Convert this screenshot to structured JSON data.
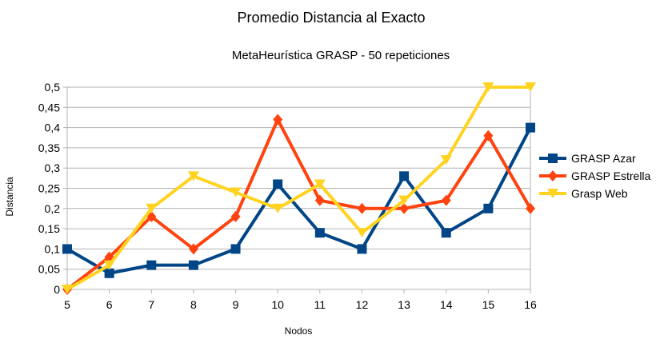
{
  "chart_data": {
    "type": "line",
    "title": "Promedio Distancia al Exacto",
    "subtitle": "MetaHeurística GRASP - 50 repeticiones",
    "xlabel": "Nodos",
    "ylabel": "Distancia",
    "x": [
      5,
      6,
      7,
      8,
      9,
      10,
      11,
      12,
      13,
      14,
      15,
      16
    ],
    "x_tick_labels": [
      "5",
      "6",
      "7",
      "8",
      "9",
      "10",
      "11",
      "12",
      "13",
      "14",
      "15",
      "16"
    ],
    "ylim": [
      0,
      0.5
    ],
    "y_ticks": [
      0,
      0.05,
      0.1,
      0.15,
      0.2,
      0.25,
      0.3,
      0.35,
      0.4,
      0.45,
      0.5
    ],
    "y_tick_labels": [
      "0",
      "0,05",
      "0,1",
      "0,15",
      "0,2",
      "0,25",
      "0,3",
      "0,35",
      "0,4",
      "0,45",
      "0,5"
    ],
    "grid": true,
    "legend_position": "right",
    "series": [
      {
        "name": "GRASP Azar",
        "color": "#004586",
        "marker": "square",
        "values": [
          0.1,
          0.04,
          0.06,
          0.06,
          0.1,
          0.26,
          0.14,
          0.1,
          0.28,
          0.14,
          0.2,
          0.4
        ]
      },
      {
        "name": "GRASP Estrella",
        "color": "#ff420e",
        "marker": "diamond",
        "values": [
          0,
          0.08,
          0.18,
          0.1,
          0.18,
          0.42,
          0.22,
          0.2,
          0.2,
          0.22,
          0.38,
          0.2
        ]
      },
      {
        "name": "Grasp Web",
        "color": "#ffd320",
        "marker": "triangle-down",
        "values": [
          0,
          0.06,
          0.2,
          0.28,
          0.24,
          0.2,
          0.26,
          0.14,
          0.22,
          0.32,
          0.5,
          0.5
        ]
      }
    ]
  }
}
